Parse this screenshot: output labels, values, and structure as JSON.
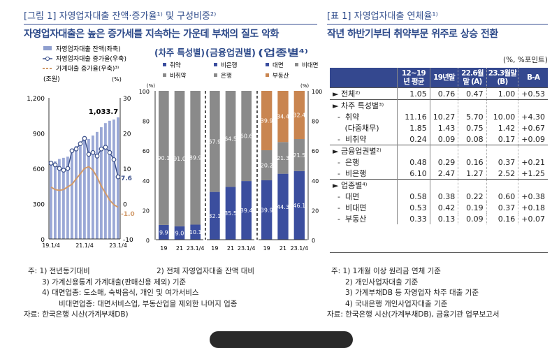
{
  "figure": {
    "title": "[그림 1] 자영업자대출 잔액·증가율¹⁾ 및 구성비중²⁾",
    "subtitle": "자영업자대출은 높은 증가세를 지속하는 가운데 부채의 질도 악화"
  },
  "table_header": {
    "title": "[표 1] 자영업자대출 연체율¹⁾",
    "subtitle": "작년 하반기부터 취약부문 위주로 상승 전환",
    "unit": "(%, %포인트)"
  },
  "chart_data": [
    {
      "type": "bar+line",
      "legend": [
        "자영업자대출 잔액(좌축)",
        "자영업자대출 증가율(우축)",
        "가계대출 증가율(우축)³⁾"
      ],
      "left_unit": "(조원)",
      "right_unit": "(%)",
      "ylim_left": [
        0,
        1200
      ],
      "ylim_right": [
        -10,
        30
      ],
      "yticks_left": [
        "1,200",
        "900",
        "600",
        "300",
        "0"
      ],
      "yticks_right": [
        "30",
        "20",
        "10",
        "0",
        "-10"
      ],
      "xticks": [
        "19.1/4",
        "21.1/4",
        "23.1/4"
      ],
      "balance": [
        640,
        660,
        680,
        690,
        700,
        760,
        790,
        820,
        860,
        850,
        880,
        910,
        950,
        985,
        1005,
        1015,
        1033.7
      ],
      "self_employed_growth": [
        11.5,
        11,
        10,
        9.5,
        10,
        15,
        15.5,
        17,
        18.5,
        14,
        14.5,
        13.5,
        15.5,
        16,
        14.5,
        12.5,
        7.6
      ],
      "household_growth": [
        4.7,
        4,
        3.8,
        4,
        4.8,
        5.5,
        7,
        8.5,
        10,
        10.5,
        9.5,
        7.5,
        5,
        3,
        1,
        -0.3,
        -1.0
      ],
      "labels": {
        "balance_last": "1,033.7",
        "growth_last": "7.6",
        "household_last": "-1.0"
      }
    },
    {
      "type": "stacked_bar",
      "panels": [
        {
          "title": "(차주 특성별)",
          "legend": [
            "취약",
            "비취약"
          ],
          "categories": [
            "19",
            "21",
            "23.1/4"
          ],
          "series": [
            {
              "name": "취약",
              "values": [
                9.9,
                9.0,
                10.1
              ],
              "label": [
                "9.9",
                "9.0",
                "10.1"
              ]
            },
            {
              "name": "비취약",
              "values": [
                90.1,
                91.0,
                89.9
              ],
              "label": [
                "90.1",
                "91.0",
                "89.9"
              ]
            }
          ]
        },
        {
          "title": "(금융업권별)",
          "legend": [
            "비은행",
            "은행"
          ],
          "categories": [
            "19",
            "21",
            "23.1/4"
          ],
          "series": [
            {
              "name": "비은행",
              "values": [
                32.1,
                35.5,
                39.4
              ],
              "label": [
                "32.1",
                "35.5",
                "39.4"
              ]
            },
            {
              "name": "은행",
              "values": [
                67.9,
                64.5,
                60.6
              ],
              "label": [
                "67.9",
                "64.5",
                "60.6"
              ]
            }
          ]
        },
        {
          "title": "(업종별⁴⁾",
          "legend": [
            "대면",
            "비대면",
            "부동산"
          ],
          "categories": [
            "19",
            "21",
            "23.1/4"
          ],
          "series": [
            {
              "name": "대면",
              "values": [
                39.9,
                44.3,
                46.1
              ],
              "label": [
                "39.9",
                "44.3",
                "46.1"
              ]
            },
            {
              "name": "비대면",
              "values": [
                20.2,
                21.3,
                21.5
              ],
              "label": [
                "20.2",
                "21.3",
                "21.5"
              ]
            },
            {
              "name": "부동산",
              "values": [
                39.9,
                34.4,
                32.4
              ],
              "label": [
                "39.9",
                "34.4",
                "32.4"
              ]
            }
          ]
        }
      ],
      "ylim": [
        0,
        100
      ],
      "unit": "(%)",
      "yticks": [
        "100",
        "80",
        "60",
        "40",
        "20",
        "0"
      ],
      "colors": {
        "blue": "#3b4e9e",
        "gray": "#8a8a8a",
        "orange": "#c98550"
      }
    }
  ],
  "table": {
    "columns": [
      "12~19년 평균",
      "19년말",
      "22.6월말 (A)",
      "23.3월말 (B)",
      "B-A"
    ],
    "rows": [
      {
        "label": "► 전체²⁾",
        "sec": true,
        "v": [
          "1.05",
          "0.76",
          "0.47",
          "1.00",
          "+0.53"
        ]
      },
      {
        "label": "► 차주 특성별³⁾",
        "sec": true,
        "v": [
          "",
          "",
          "",
          "",
          ""
        ]
      },
      {
        "label": "  -  취약",
        "v": [
          "11.16",
          "10.27",
          "5.70",
          "10.00",
          "+4.30"
        ]
      },
      {
        "label": "     (다중채무)",
        "v": [
          "1.85",
          "1.43",
          "0.75",
          "1.42",
          "+0.67"
        ]
      },
      {
        "label": "  -  비취약",
        "v": [
          "0.24",
          "0.09",
          "0.08",
          "0.17",
          "+0.09"
        ]
      },
      {
        "label": "► 금융업권별²⁾",
        "sec": true,
        "v": [
          "",
          "",
          "",
          "",
          ""
        ]
      },
      {
        "label": "  -  은행",
        "v": [
          "0.48",
          "0.29",
          "0.16",
          "0.37",
          "+0.21"
        ]
      },
      {
        "label": "  -  비은행",
        "v": [
          "6.10",
          "2.47",
          "1.27",
          "2.52",
          "+1.25"
        ]
      },
      {
        "label": "► 업종별⁴⁾",
        "sec": true,
        "v": [
          "",
          "",
          "",
          "",
          ""
        ]
      },
      {
        "label": "  -  대면",
        "v": [
          "0.58",
          "0.38",
          "0.22",
          "0.60",
          "+0.38"
        ]
      },
      {
        "label": "  -  비대면",
        "v": [
          "0.53",
          "0.42",
          "0.19",
          "0.37",
          "+0.18"
        ]
      },
      {
        "label": "  -  부동산",
        "v": [
          "0.33",
          "0.13",
          "0.09",
          "0.16",
          "+0.07"
        ]
      }
    ]
  },
  "notes_left": [
    "주: 1) 전년동기대비",
    "2) 전체 자영업자대출 잔액 대비",
    "3) 가계신용통계 가계대출(판매신용 제외) 기준",
    "4) 대면업종: 도소매, 숙박음식, 개인 및 여가서비스",
    "비대면업종: 대면서비스업, 부동산업을 제외한 나머지 업종",
    "자료: 한국은행 시산(가계부채DB)"
  ],
  "notes_right": [
    "주: 1) 1개월 이상 원리금 연체 기준",
    "2) 개인사업자대출 기준",
    "3) 가계부채DB 등 자영업자 차주 대출 기준",
    "4) 국내은행 개인사업자대출 기준",
    "자료: 한국은행 시산(가계부채DB), 금융기관 업무보고서"
  ]
}
